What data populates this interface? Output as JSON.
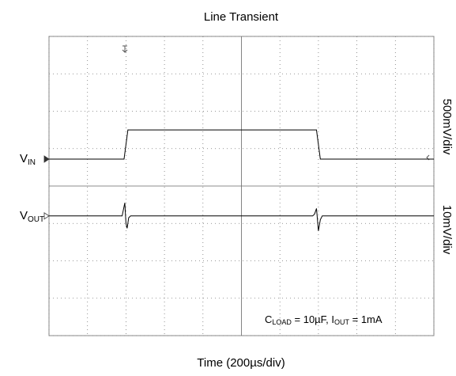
{
  "chart_data": {
    "type": "line",
    "title": "Line Transient",
    "x_label": "Time (200µs/div)",
    "xlim": [
      0,
      10
    ],
    "ylim": [
      0,
      8
    ],
    "xticks": [
      0,
      1,
      2,
      3,
      4,
      5,
      6,
      7,
      8,
      9,
      10
    ],
    "yticks": [
      0,
      1,
      2,
      3,
      4,
      5,
      6,
      7,
      8
    ],
    "grid": true,
    "series": [
      {
        "label": [
          {
            "text": "V"
          },
          {
            "text": "IN",
            "sub": true
          }
        ],
        "scale": "500mV/div",
        "color": "#000000",
        "x": [
          0,
          1.95,
          2.05,
          6.95,
          7.05,
          10
        ],
        "values": [
          4.72,
          4.72,
          5.5,
          5.5,
          4.72,
          4.72
        ]
      },
      {
        "label": [
          {
            "text": "V"
          },
          {
            "text": "OUT",
            "sub": true
          }
        ],
        "scale": "10mV/div",
        "color": "#000000",
        "x": [
          0,
          1.9,
          1.97,
          2.0,
          2.03,
          2.07,
          2.12,
          6.85,
          6.9,
          6.95,
          7.0,
          7.05,
          7.1,
          10
        ],
        "values": [
          3.2,
          3.2,
          3.55,
          3.0,
          2.87,
          3.15,
          3.2,
          3.2,
          3.25,
          3.4,
          2.8,
          3.1,
          3.2,
          3.2
        ]
      }
    ],
    "annotation": [
      {
        "text": "C"
      },
      {
        "text": "LOAD",
        "sub": true
      },
      {
        "text": " = 10µF, I"
      },
      {
        "text": "OUT",
        "sub": true
      },
      {
        "text": " = 1mA"
      }
    ]
  }
}
